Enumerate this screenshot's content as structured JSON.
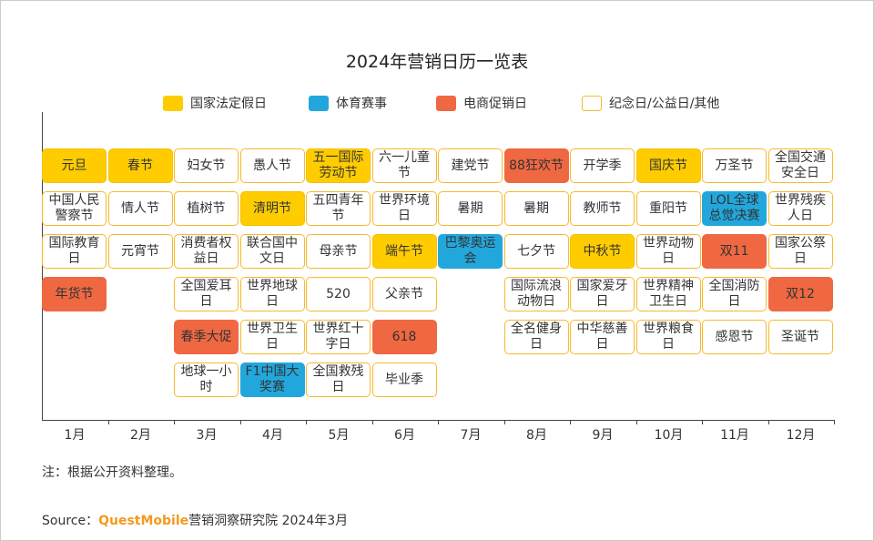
{
  "chart_data": {
    "type": "table",
    "title": "2024年营销日历一览表",
    "legend": [
      {
        "key": "holiday",
        "label": "国家法定假日",
        "color": "#FFCC00"
      },
      {
        "key": "sports",
        "label": "体育赛事",
        "color": "#22A7DC"
      },
      {
        "key": "ecommerce",
        "label": "电商促销日",
        "color": "#EF6842"
      },
      {
        "key": "other",
        "label": "纪念日/公益日/其他",
        "color": "#FFFFFF"
      }
    ],
    "legend_position": "top",
    "months": [
      {
        "label": "1月",
        "events": [
          {
            "name": "元旦",
            "type": "holiday"
          },
          {
            "name": "中国人民警察节",
            "type": "other"
          },
          {
            "name": "国际教育日",
            "type": "other"
          },
          {
            "name": "年货节",
            "type": "ecommerce"
          }
        ]
      },
      {
        "label": "2月",
        "events": [
          {
            "name": "春节",
            "type": "holiday"
          },
          {
            "name": "情人节",
            "type": "other"
          },
          {
            "name": "元宵节",
            "type": "other"
          }
        ]
      },
      {
        "label": "3月",
        "events": [
          {
            "name": "妇女节",
            "type": "other"
          },
          {
            "name": "植树节",
            "type": "other"
          },
          {
            "name": "消费者权益日",
            "type": "other"
          },
          {
            "name": "全国爱耳日",
            "type": "other"
          },
          {
            "name": "春季大促",
            "type": "ecommerce"
          },
          {
            "name": "地球一小时",
            "type": "other"
          }
        ]
      },
      {
        "label": "4月",
        "events": [
          {
            "name": "愚人节",
            "type": "other"
          },
          {
            "name": "清明节",
            "type": "holiday"
          },
          {
            "name": "联合国中文日",
            "type": "other"
          },
          {
            "name": "世界地球日",
            "type": "other"
          },
          {
            "name": "世界卫生日",
            "type": "other"
          },
          {
            "name": "F1中国大奖赛",
            "type": "sports"
          }
        ]
      },
      {
        "label": "5月",
        "events": [
          {
            "name": "五一国际劳动节",
            "type": "holiday"
          },
          {
            "name": "五四青年节",
            "type": "other"
          },
          {
            "name": "母亲节",
            "type": "other"
          },
          {
            "name": "520",
            "type": "other"
          },
          {
            "name": "世界红十字日",
            "type": "other"
          },
          {
            "name": "全国救残日",
            "type": "other"
          }
        ]
      },
      {
        "label": "6月",
        "events": [
          {
            "name": "六一儿童节",
            "type": "other"
          },
          {
            "name": "世界环境日",
            "type": "other"
          },
          {
            "name": "端午节",
            "type": "holiday"
          },
          {
            "name": "父亲节",
            "type": "other"
          },
          {
            "name": "618",
            "type": "ecommerce"
          },
          {
            "name": "毕业季",
            "type": "other"
          }
        ]
      },
      {
        "label": "7月",
        "events": [
          {
            "name": "建党节",
            "type": "other"
          },
          {
            "name": "暑期",
            "type": "other"
          },
          {
            "name": "巴黎奥运会",
            "type": "sports"
          }
        ]
      },
      {
        "label": "8月",
        "events": [
          {
            "name": "88狂欢节",
            "type": "ecommerce"
          },
          {
            "name": "暑期",
            "type": "other"
          },
          {
            "name": "七夕节",
            "type": "other"
          },
          {
            "name": "国际流浪动物日",
            "type": "other"
          },
          {
            "name": "全名健身日",
            "type": "other"
          }
        ]
      },
      {
        "label": "9月",
        "events": [
          {
            "name": "开学季",
            "type": "other"
          },
          {
            "name": "教师节",
            "type": "other"
          },
          {
            "name": "中秋节",
            "type": "holiday"
          },
          {
            "name": "国家爱牙日",
            "type": "other"
          },
          {
            "name": "中华慈善日",
            "type": "other"
          }
        ]
      },
      {
        "label": "10月",
        "events": [
          {
            "name": "国庆节",
            "type": "holiday"
          },
          {
            "name": "重阳节",
            "type": "other"
          },
          {
            "name": "世界动物日",
            "type": "other"
          },
          {
            "name": "世界精神卫生日",
            "type": "other"
          },
          {
            "name": "世界粮食日",
            "type": "other"
          }
        ]
      },
      {
        "label": "11月",
        "events": [
          {
            "name": "万圣节",
            "type": "other"
          },
          {
            "name": "LOL全球总觉决赛",
            "type": "sports"
          },
          {
            "name": "双11",
            "type": "ecommerce"
          },
          {
            "name": "全国消防日",
            "type": "other"
          },
          {
            "name": "感恩节",
            "type": "other"
          }
        ]
      },
      {
        "label": "12月",
        "events": [
          {
            "name": "全国交通安全日",
            "type": "other"
          },
          {
            "name": "世界残疾人日",
            "type": "other"
          },
          {
            "name": "国家公祭日",
            "type": "other"
          },
          {
            "name": "双12",
            "type": "ecommerce"
          },
          {
            "name": "圣诞节",
            "type": "other"
          }
        ]
      }
    ]
  },
  "note": "注：根据公开资料整理。",
  "source": {
    "prefix": "Source：",
    "brand": "QuestMobile",
    "suffix": "营销洞察研究院 2024年3月"
  }
}
